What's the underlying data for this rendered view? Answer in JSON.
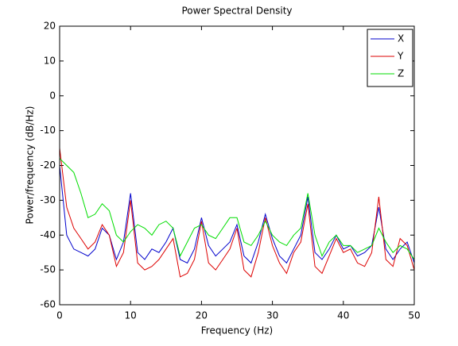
{
  "chart_data": {
    "type": "line",
    "title": "Power Spectral Density",
    "x_label": "Frequency (Hz)",
    "y_label": "Power/frequency (dB/Hz)",
    "x": [
      0,
      1,
      2,
      3,
      4,
      5,
      6,
      7,
      8,
      9,
      10,
      11,
      12,
      13,
      14,
      15,
      16,
      17,
      18,
      19,
      20,
      21,
      22,
      23,
      24,
      25,
      26,
      27,
      28,
      29,
      30,
      31,
      32,
      33,
      34,
      35,
      36,
      37,
      38,
      39,
      40,
      41,
      42,
      43,
      44,
      45,
      46,
      47,
      48,
      49,
      50
    ],
    "series": [
      {
        "name": "X",
        "color": "#0000cc",
        "values": [
          -20,
          -40,
          -44,
          -45,
          -46,
          -44,
          -38,
          -40,
          -47,
          -42,
          -28,
          -45,
          -47,
          -44,
          -45,
          -42,
          -38,
          -47,
          -48,
          -44,
          -35,
          -43,
          -46,
          -44,
          -42,
          -37,
          -46,
          -48,
          -42,
          -34,
          -41,
          -46,
          -48,
          -44,
          -40,
          -29,
          -45,
          -47,
          -44,
          -40,
          -44,
          -43,
          -46,
          -45,
          -43,
          -32,
          -44,
          -47,
          -44,
          -42,
          -48
        ]
      },
      {
        "name": "Y",
        "color": "#dd0000",
        "values": [
          -15,
          -32,
          -38,
          -41,
          -44,
          -42,
          -37,
          -40,
          -49,
          -45,
          -30,
          -48,
          -50,
          -49,
          -47,
          -44,
          -41,
          -52,
          -51,
          -47,
          -36,
          -48,
          -50,
          -47,
          -44,
          -38,
          -50,
          -52,
          -45,
          -35,
          -43,
          -48,
          -51,
          -45,
          -42,
          -31,
          -49,
          -51,
          -46,
          -41,
          -45,
          -44,
          -48,
          -49,
          -45,
          -29,
          -47,
          -49,
          -41,
          -43,
          -50
        ]
      },
      {
        "name": "Z",
        "color": "#00dd00",
        "values": [
          -18,
          -20,
          -22,
          -28,
          -35,
          -34,
          -31,
          -33,
          -40,
          -42,
          -39,
          -37,
          -38,
          -40,
          -37,
          -36,
          -38,
          -46,
          -42,
          -38,
          -37,
          -40,
          -41,
          -38,
          -35,
          -35,
          -42,
          -43,
          -40,
          -36,
          -40,
          -42,
          -43,
          -40,
          -38,
          -28,
          -40,
          -46,
          -42,
          -40,
          -43,
          -43,
          -45,
          -44,
          -43,
          -38,
          -42,
          -45,
          -43,
          -44,
          -47
        ]
      }
    ],
    "xlim": [
      0,
      50
    ],
    "xticks": [
      0,
      10,
      20,
      30,
      40,
      50
    ],
    "ylim": [
      -60,
      20
    ],
    "yticks": [
      -60,
      -50,
      -40,
      -30,
      -20,
      -10,
      0,
      10,
      20
    ],
    "legend": "top-right"
  }
}
